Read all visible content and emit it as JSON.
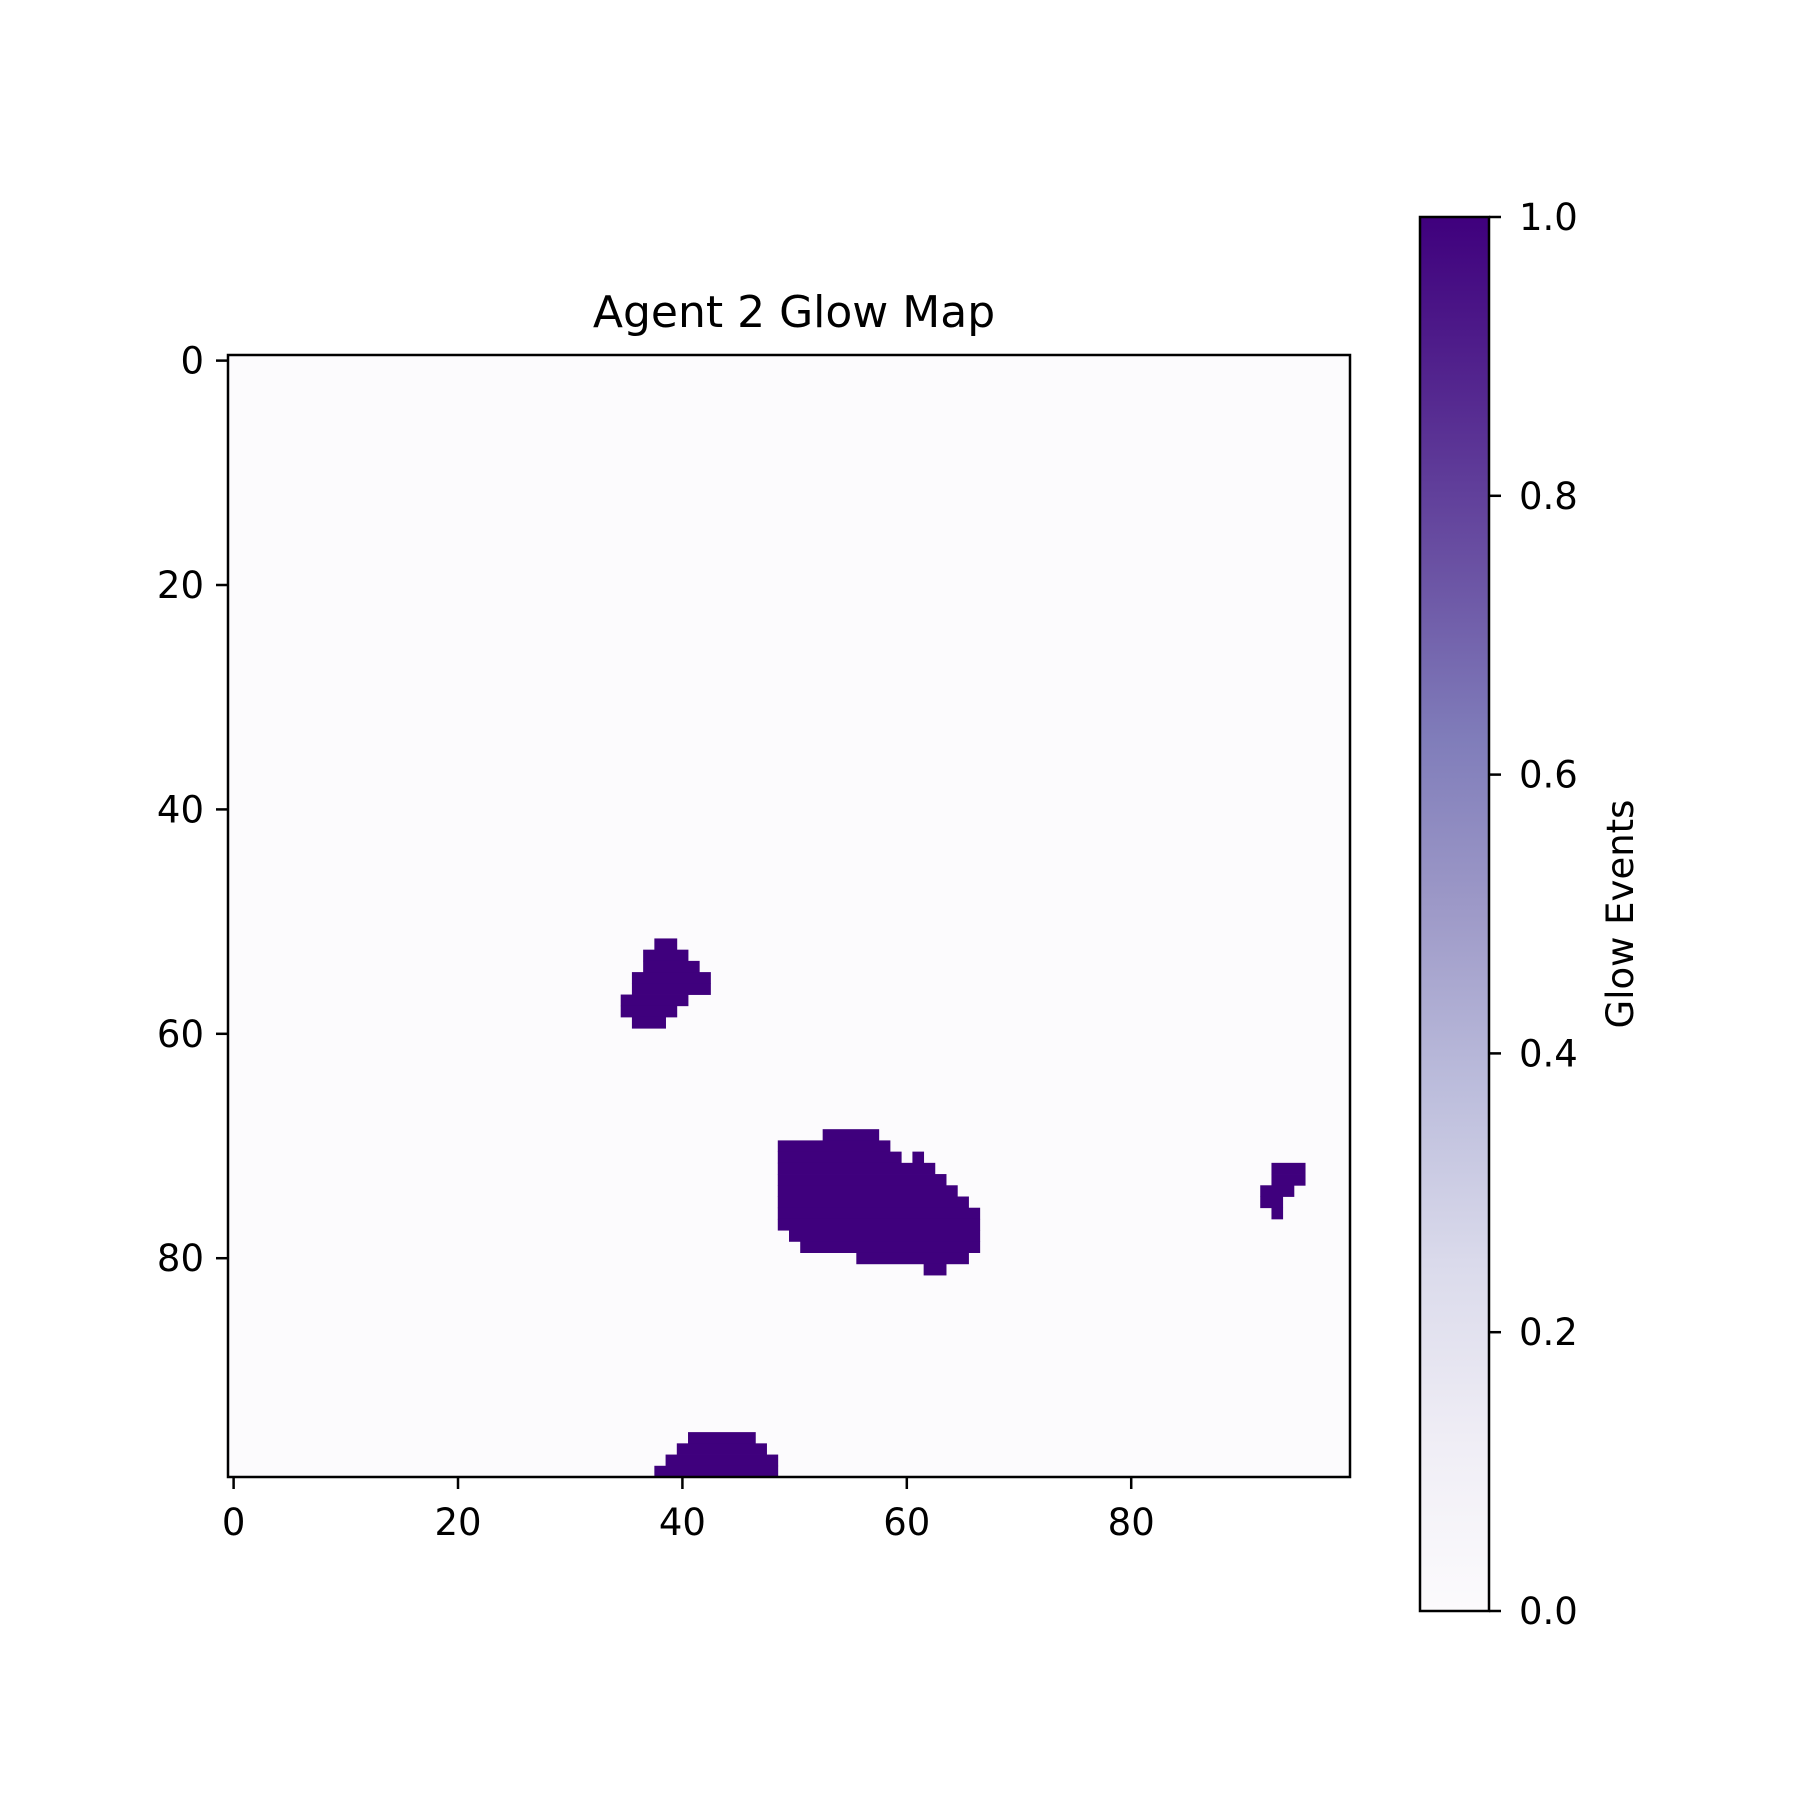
{
  "chart_data": {
    "type": "heatmap",
    "title": "Agent 2 Glow Map",
    "xlabel": "",
    "ylabel": "",
    "grid_size": [
      100,
      100
    ],
    "xlim": [
      -0.5,
      99.5
    ],
    "ylim": [
      99.5,
      -0.5
    ],
    "y_inverted": true,
    "grid": false,
    "x_ticks": [
      0,
      20,
      40,
      60,
      80
    ],
    "y_ticks": [
      0,
      20,
      40,
      60,
      80
    ],
    "colormap": "Purples",
    "colormap_low": "#fcfbfd",
    "colormap_high": "#3f007d",
    "value_range": [
      0.0,
      1.0
    ],
    "background_value": 0.0,
    "colorbar": {
      "label": "Glow Events",
      "ticks": [
        "0.0",
        "0.2",
        "0.4",
        "0.6",
        "0.8",
        "1.0"
      ],
      "placement": "right"
    },
    "glow_cells_value": 1.0,
    "glow_rows": [
      {
        "y": 52,
        "runs": [
          [
            38,
            39
          ]
        ]
      },
      {
        "y": 53,
        "runs": [
          [
            37,
            40
          ]
        ]
      },
      {
        "y": 54,
        "runs": [
          [
            37,
            41
          ]
        ]
      },
      {
        "y": 55,
        "runs": [
          [
            36,
            42
          ]
        ]
      },
      {
        "y": 56,
        "runs": [
          [
            36,
            42
          ]
        ]
      },
      {
        "y": 57,
        "runs": [
          [
            35,
            40
          ]
        ]
      },
      {
        "y": 58,
        "runs": [
          [
            35,
            39
          ]
        ]
      },
      {
        "y": 59,
        "runs": [
          [
            36,
            38
          ]
        ]
      },
      {
        "y": 69,
        "runs": [
          [
            53,
            57
          ]
        ]
      },
      {
        "y": 70,
        "runs": [
          [
            49,
            58
          ]
        ]
      },
      {
        "y": 71,
        "runs": [
          [
            49,
            59
          ],
          [
            61,
            61
          ]
        ]
      },
      {
        "y": 72,
        "runs": [
          [
            49,
            62
          ],
          [
            93,
            95
          ]
        ]
      },
      {
        "y": 73,
        "runs": [
          [
            49,
            63
          ],
          [
            93,
            95
          ]
        ]
      },
      {
        "y": 74,
        "runs": [
          [
            49,
            64
          ],
          [
            92,
            94
          ]
        ]
      },
      {
        "y": 75,
        "runs": [
          [
            49,
            65
          ],
          [
            92,
            93
          ]
        ]
      },
      {
        "y": 76,
        "runs": [
          [
            49,
            66
          ],
          [
            93,
            93
          ]
        ]
      },
      {
        "y": 77,
        "runs": [
          [
            49,
            66
          ]
        ]
      },
      {
        "y": 78,
        "runs": [
          [
            50,
            66
          ]
        ]
      },
      {
        "y": 79,
        "runs": [
          [
            51,
            66
          ]
        ]
      },
      {
        "y": 80,
        "runs": [
          [
            56,
            65
          ]
        ]
      },
      {
        "y": 81,
        "runs": [
          [
            62,
            63
          ]
        ]
      },
      {
        "y": 96,
        "runs": [
          [
            41,
            46
          ]
        ]
      },
      {
        "y": 97,
        "runs": [
          [
            40,
            47
          ]
        ]
      },
      {
        "y": 98,
        "runs": [
          [
            39,
            48
          ]
        ]
      },
      {
        "y": 99,
        "runs": [
          [
            38,
            48
          ]
        ]
      }
    ]
  }
}
